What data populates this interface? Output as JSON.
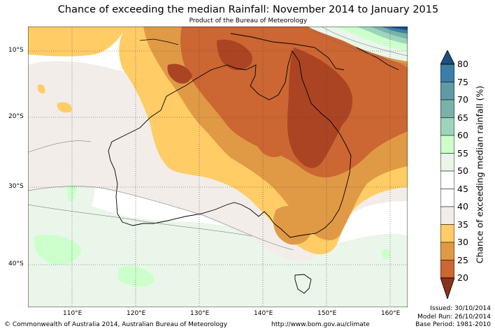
{
  "header": {
    "title": "Chance of exceeding the median Rainfall: November 2014 to January 2015",
    "subtitle": "Product of the Bureau of Meteorology"
  },
  "map": {
    "lat_labels": [
      "10°S",
      "20°S",
      "30°S",
      "40°S"
    ],
    "lon_labels": [
      "110°E",
      "120°E",
      "130°E",
      "140°E",
      "150°E",
      "160°E"
    ]
  },
  "colorbar": {
    "title": "Chance of exceeding median rainfall (%)",
    "ticks": [
      "80",
      "75",
      "70",
      "65",
      "60",
      "55",
      "50",
      "45",
      "40",
      "35",
      "30",
      "25",
      "20"
    ],
    "colors": [
      "#1b4f82",
      "#3b7ea8",
      "#5f9aa6",
      "#7bb2a8",
      "#9fd4bc",
      "#ccffcc",
      "#e9f5e9",
      "#ffffff",
      "#ffffff",
      "#f2ede8",
      "#ffcc66",
      "#e09a45",
      "#cc6633",
      "#aa4422",
      "#8a3318"
    ]
  },
  "footer": {
    "copyright": "© Commonwealth of Australia 2014, Australian Bureau of Meteorology",
    "url": "http://www.bom.gov.au/climate",
    "issued": "Issued: 30/10/2014",
    "model_run": "Model Run: 26/10/2014",
    "base_period": "Base Period: 1981-2010"
  }
}
